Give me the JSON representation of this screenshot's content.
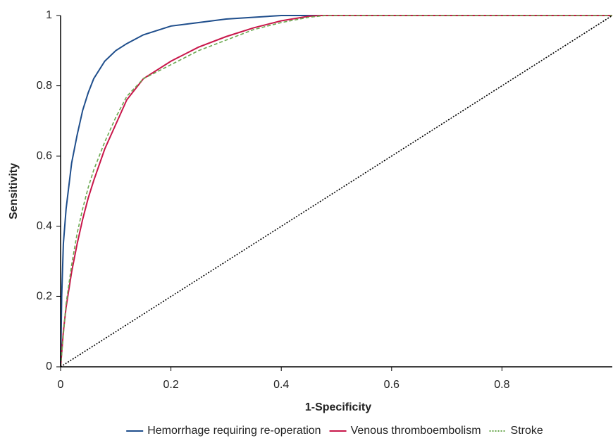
{
  "chart_data": {
    "type": "line",
    "x_label": "1-Specificity",
    "y_label": "Sensitivity",
    "xlim": [
      0,
      1
    ],
    "ylim": [
      0,
      1
    ],
    "xticks": [
      0,
      0.2,
      0.4,
      0.6,
      0.8
    ],
    "yticks": [
      0,
      0.2,
      0.4,
      0.6,
      0.8,
      1
    ],
    "grid": false,
    "legend": "bottom",
    "series": [
      {
        "name": "Hemorrhage requiring re-operation",
        "color": "#1f4e8c",
        "dash": "solid",
        "x": [
          0,
          0.002,
          0.005,
          0.01,
          0.02,
          0.03,
          0.04,
          0.05,
          0.06,
          0.08,
          0.1,
          0.12,
          0.15,
          0.2,
          0.25,
          0.3,
          0.35,
          0.4,
          1
        ],
        "values": [
          0,
          0.2,
          0.35,
          0.45,
          0.58,
          0.66,
          0.73,
          0.78,
          0.82,
          0.87,
          0.9,
          0.92,
          0.945,
          0.97,
          0.98,
          0.99,
          0.995,
          1,
          1
        ]
      },
      {
        "name": "Venous thromboembolism",
        "color": "#c8174a",
        "dash": "solid",
        "x": [
          0,
          0.005,
          0.01,
          0.02,
          0.03,
          0.04,
          0.05,
          0.06,
          0.08,
          0.1,
          0.12,
          0.15,
          0.2,
          0.25,
          0.3,
          0.35,
          0.4,
          0.45,
          0.47,
          1
        ],
        "values": [
          0,
          0.1,
          0.17,
          0.27,
          0.35,
          0.42,
          0.48,
          0.53,
          0.62,
          0.69,
          0.76,
          0.82,
          0.87,
          0.91,
          0.94,
          0.965,
          0.985,
          0.998,
          1,
          1
        ]
      },
      {
        "name": "Stroke",
        "color": "#6aa84f",
        "dash": "dashed",
        "x": [
          0,
          0.01,
          0.02,
          0.03,
          0.04,
          0.05,
          0.06,
          0.08,
          0.1,
          0.12,
          0.15,
          0.2,
          0.25,
          0.3,
          0.35,
          0.4,
          0.45,
          0.48,
          1
        ],
        "values": [
          0,
          0.18,
          0.29,
          0.38,
          0.45,
          0.51,
          0.56,
          0.64,
          0.71,
          0.77,
          0.82,
          0.86,
          0.9,
          0.93,
          0.96,
          0.98,
          0.995,
          1,
          1
        ]
      },
      {
        "color": "#000000",
        "dash": "dotted",
        "x": [
          0,
          1
        ],
        "values": [
          0,
          1
        ]
      }
    ]
  }
}
